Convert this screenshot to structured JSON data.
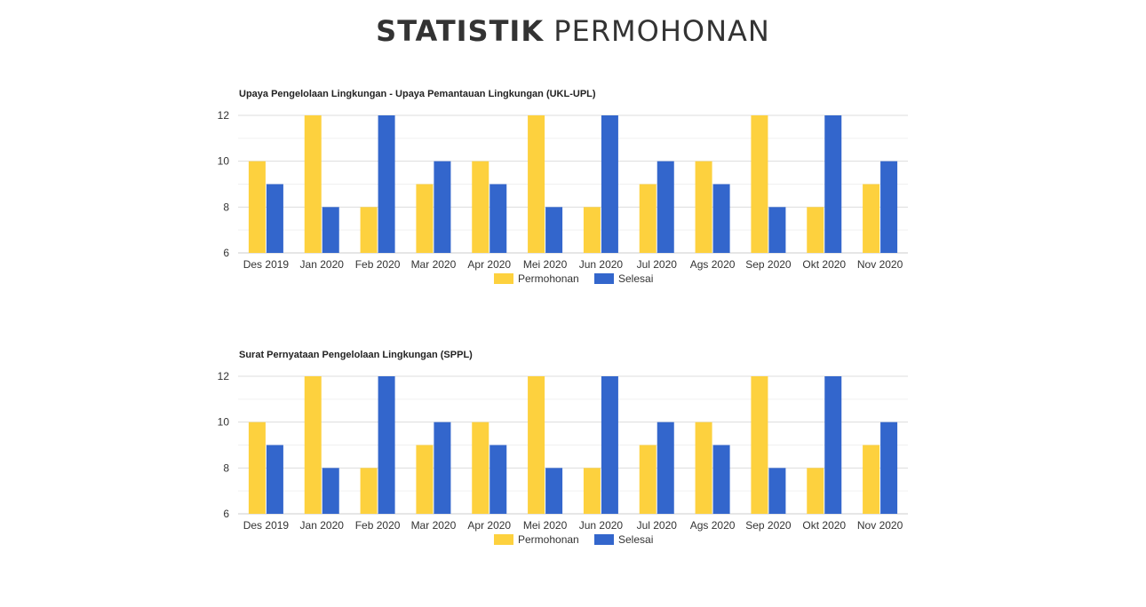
{
  "page": {
    "title_bold": "STATISTIK",
    "title_light": "PERMOHONAN"
  },
  "colors": {
    "permohonan": "#FDD13E",
    "selesai": "#3366CC",
    "grid": "#dddddd",
    "minor_grid": "#f0f0f0",
    "axis_text": "#333333"
  },
  "chart_data": [
    {
      "type": "bar",
      "title": "Upaya Pengelolaan Lingkungan - Upaya Pemantauan Lingkungan (UKL-UPL)",
      "categories": [
        "Des 2019",
        "Jan 2020",
        "Feb 2020",
        "Mar 2020",
        "Apr 2020",
        "Mei 2020",
        "Jun 2020",
        "Jul 2020",
        "Ags 2020",
        "Sep 2020",
        "Okt 2020",
        "Nov 2020"
      ],
      "series": [
        {
          "name": "Permohonan",
          "values": [
            10,
            12,
            8,
            9,
            10,
            12,
            8,
            9,
            10,
            12,
            8,
            9
          ]
        },
        {
          "name": "Selesai",
          "values": [
            9,
            8,
            12,
            10,
            9,
            8,
            12,
            10,
            9,
            8,
            12,
            10
          ]
        }
      ],
      "ylim": [
        6,
        12
      ],
      "yticks": [
        6,
        8,
        10,
        12
      ],
      "grid": true,
      "legend": "bottom"
    },
    {
      "type": "bar",
      "title": "Surat Pernyataan Pengelolaan Lingkungan (SPPL)",
      "categories": [
        "Des 2019",
        "Jan 2020",
        "Feb 2020",
        "Mar 2020",
        "Apr 2020",
        "Mei 2020",
        "Jun 2020",
        "Jul 2020",
        "Ags 2020",
        "Sep 2020",
        "Okt 2020",
        "Nov 2020"
      ],
      "series": [
        {
          "name": "Permohonan",
          "values": [
            10,
            12,
            8,
            9,
            10,
            12,
            8,
            9,
            10,
            12,
            8,
            9
          ]
        },
        {
          "name": "Selesai",
          "values": [
            9,
            8,
            12,
            10,
            9,
            8,
            12,
            10,
            9,
            8,
            12,
            10
          ]
        }
      ],
      "ylim": [
        6,
        12
      ],
      "yticks": [
        6,
        8,
        10,
        12
      ],
      "grid": true,
      "legend": "bottom"
    }
  ]
}
